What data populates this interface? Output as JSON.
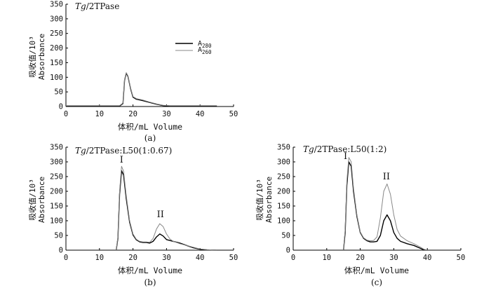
{
  "chart_data": [
    {
      "type": "line",
      "title_italic": "Tg",
      "title_rest": "/2TPase",
      "xlabel": "体积/mL Volume",
      "ylabel_line1": "吸收值/10³",
      "ylabel_line2": "Absorbance",
      "caption": "(a)",
      "xlim": [
        0,
        50
      ],
      "ylim": [
        0,
        350
      ],
      "xticks": [
        "0",
        "10",
        "20",
        "30",
        "40",
        "50"
      ],
      "yticks": [
        "0",
        "50",
        "100",
        "150",
        "200",
        "250",
        "300",
        "350"
      ],
      "legend": {
        "position": "top-right",
        "entries": [
          {
            "base": "A",
            "sub": "280",
            "color": "#000000"
          },
          {
            "base": "A",
            "sub": "260",
            "color": "#888888"
          }
        ]
      },
      "peak_labels": [],
      "series": [
        {
          "color": "#000000",
          "width": 1.4,
          "points": [
            [
              0,
              2
            ],
            [
              14,
              2
            ],
            [
              16,
              2
            ],
            [
              17,
              10
            ],
            [
              17.5,
              90
            ],
            [
              18,
              114
            ],
            [
              18.5,
              103
            ],
            [
              19.3,
              60
            ],
            [
              20,
              32
            ],
            [
              21,
              25
            ],
            [
              23,
              20
            ],
            [
              25,
              14
            ],
            [
              27,
              8
            ],
            [
              29,
              3
            ],
            [
              31,
              2
            ],
            [
              45,
              2
            ]
          ]
        },
        {
          "color": "#888888",
          "width": 1.0,
          "points": [
            [
              0,
              3
            ],
            [
              14,
              3
            ],
            [
              16,
              3
            ],
            [
              17,
              12
            ],
            [
              17.5,
              92
            ],
            [
              18,
              116
            ],
            [
              18.5,
              105
            ],
            [
              19.3,
              62
            ],
            [
              20,
              34
            ],
            [
              21,
              27
            ],
            [
              23,
              22
            ],
            [
              25,
              15
            ],
            [
              27,
              9
            ],
            [
              29,
              4
            ],
            [
              31,
              3
            ],
            [
              45,
              3
            ]
          ]
        }
      ]
    },
    {
      "type": "line",
      "title_italic": "Tg",
      "title_rest": "/2TPase:L50(1:0.67)",
      "xlabel": "体积/mL Volume",
      "ylabel_line1": "吸收值/10³",
      "ylabel_line2": "Absorbance",
      "caption": "(b)",
      "xlim": [
        0,
        50
      ],
      "ylim": [
        0,
        350
      ],
      "xticks": [
        "0",
        "10",
        "20",
        "30",
        "40",
        "50"
      ],
      "yticks": [
        "0",
        "50",
        "100",
        "150",
        "200",
        "250",
        "300",
        "350"
      ],
      "legend": null,
      "peak_labels": [
        {
          "text": "I",
          "x": 16.6,
          "y": 298
        },
        {
          "text": "II",
          "x": 28.2,
          "y": 112
        }
      ],
      "series": [
        {
          "color": "#000000",
          "width": 1.4,
          "points": [
            [
              15,
              0
            ],
            [
              15.5,
              40
            ],
            [
              16,
              190
            ],
            [
              16.6,
              270
            ],
            [
              17.2,
              255
            ],
            [
              18,
              175
            ],
            [
              19,
              95
            ],
            [
              20,
              52
            ],
            [
              21,
              35
            ],
            [
              22,
              28
            ],
            [
              23,
              26
            ],
            [
              24,
              26
            ],
            [
              25,
              24
            ],
            [
              26,
              30
            ],
            [
              27,
              45
            ],
            [
              28,
              55
            ],
            [
              29,
              48
            ],
            [
              30,
              36
            ],
            [
              32,
              30
            ],
            [
              34,
              24
            ],
            [
              36,
              16
            ],
            [
              38,
              8
            ],
            [
              40,
              3
            ],
            [
              42,
              1
            ],
            [
              45,
              0
            ]
          ]
        },
        {
          "color": "#888888",
          "width": 1.0,
          "points": [
            [
              15,
              0
            ],
            [
              15.5,
              45
            ],
            [
              16,
              200
            ],
            [
              16.6,
              285
            ],
            [
              17.2,
              268
            ],
            [
              18,
              185
            ],
            [
              19,
              100
            ],
            [
              20,
              55
            ],
            [
              21,
              37
            ],
            [
              22,
              30
            ],
            [
              23,
              28
            ],
            [
              24,
              28
            ],
            [
              25,
              27
            ],
            [
              26,
              40
            ],
            [
              27,
              72
            ],
            [
              28,
              90
            ],
            [
              29,
              80
            ],
            [
              30,
              55
            ],
            [
              31,
              38
            ],
            [
              32,
              30
            ],
            [
              34,
              22
            ],
            [
              36,
              16
            ],
            [
              38,
              10
            ],
            [
              40,
              4
            ],
            [
              42,
              2
            ],
            [
              45,
              0
            ]
          ]
        }
      ]
    },
    {
      "type": "line",
      "title_italic": "Tg",
      "title_rest": "/2TPase:L50(1:2)",
      "xlabel": "体积/mL Volume",
      "ylabel_line1": "吸收值/10³",
      "ylabel_line2": "Absorbance",
      "caption": "(c)",
      "xlim": [
        0,
        50
      ],
      "ylim": [
        0,
        350
      ],
      "xticks": [
        "0",
        "10",
        "20",
        "30",
        "40",
        "50"
      ],
      "yticks": [
        "0",
        "50",
        "100",
        "150",
        "200",
        "250",
        "300",
        "350"
      ],
      "legend": null,
      "peak_labels": [
        {
          "text": "I",
          "x": 15.6,
          "y": 310
        },
        {
          "text": "II",
          "x": 27.8,
          "y": 240
        }
      ],
      "series": [
        {
          "color": "#000000",
          "width": 1.4,
          "points": [
            [
              15,
              0
            ],
            [
              15.5,
              60
            ],
            [
              16,
              220
            ],
            [
              16.6,
              300
            ],
            [
              17.3,
              285
            ],
            [
              18,
              200
            ],
            [
              19,
              115
            ],
            [
              20,
              60
            ],
            [
              21,
              40
            ],
            [
              22,
              32
            ],
            [
              23,
              28
            ],
            [
              24,
              28
            ],
            [
              25,
              30
            ],
            [
              26,
              50
            ],
            [
              27,
              100
            ],
            [
              28,
              120
            ],
            [
              29,
              100
            ],
            [
              30,
              60
            ],
            [
              31,
              40
            ],
            [
              32,
              30
            ],
            [
              34,
              22
            ],
            [
              36,
              16
            ],
            [
              38,
              6
            ],
            [
              39,
              1
            ],
            [
              40,
              0
            ]
          ]
        },
        {
          "color": "#888888",
          "width": 1.0,
          "points": [
            [
              15,
              0
            ],
            [
              15.5,
              70
            ],
            [
              16,
              235
            ],
            [
              16.6,
              315
            ],
            [
              17.3,
              300
            ],
            [
              18,
              210
            ],
            [
              19,
              120
            ],
            [
              20,
              62
            ],
            [
              21,
              42
            ],
            [
              22,
              34
            ],
            [
              23,
              32
            ],
            [
              24,
              33
            ],
            [
              25,
              45
            ],
            [
              26,
              110
            ],
            [
              27,
              200
            ],
            [
              28,
              225
            ],
            [
              29,
              190
            ],
            [
              30,
              120
            ],
            [
              31,
              70
            ],
            [
              32,
              48
            ],
            [
              34,
              32
            ],
            [
              36,
              22
            ],
            [
              38,
              10
            ],
            [
              39,
              3
            ],
            [
              40,
              0
            ]
          ]
        }
      ]
    }
  ]
}
